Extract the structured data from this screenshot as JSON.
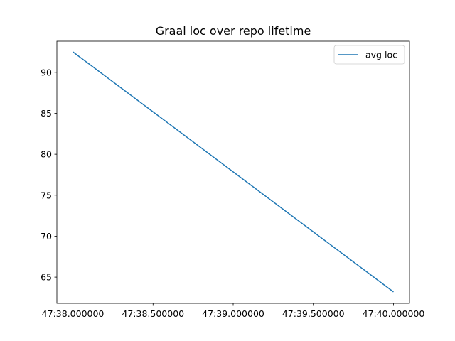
{
  "chart_data": {
    "type": "line",
    "title": "Graal loc over repo lifetime",
    "xlabel": "",
    "ylabel": "",
    "x": [
      0,
      2
    ],
    "x_tick_values": [
      0,
      0.5,
      1,
      1.5,
      2
    ],
    "x_tick_labels": [
      "47:38.000000",
      "47:38.500000",
      "47:39.000000",
      "47:39.500000",
      "47:40.000000"
    ],
    "xlim": [
      -0.1,
      2.1
    ],
    "ylim": [
      61.8,
      93.8
    ],
    "y_ticks": [
      65,
      70,
      75,
      80,
      85,
      90
    ],
    "series": [
      {
        "name": "avg loc",
        "values": [
          92.5,
          63.2
        ],
        "color": "#1f77b4"
      }
    ],
    "legend": {
      "placement": "top-right"
    },
    "grid": false
  }
}
